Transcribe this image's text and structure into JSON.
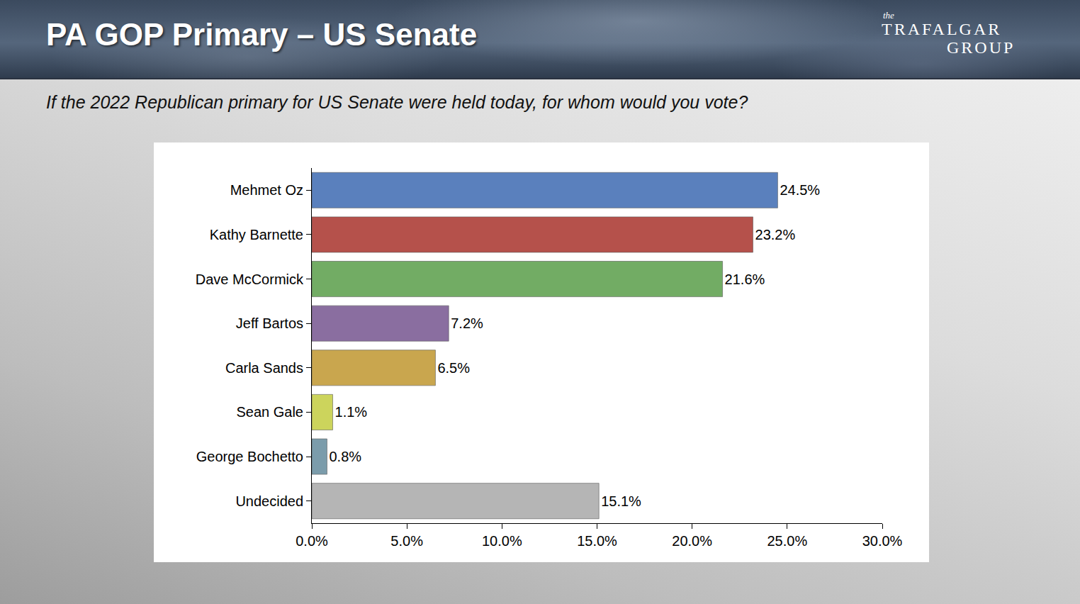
{
  "chart_data": {
    "type": "bar",
    "title": "PA GOP Primary – US Senate",
    "subtitle": "If the 2022 Republican primary for US Senate were held today, for whom would you vote?",
    "orientation": "horizontal",
    "categories": [
      "Mehmet Oz",
      "Kathy Barnette",
      "Dave McCormick",
      "Jeff Bartos",
      "Carla Sands",
      "Sean Gale",
      "George Bochetto",
      "Undecided"
    ],
    "values": [
      24.5,
      23.2,
      21.6,
      7.2,
      6.5,
      1.1,
      0.8,
      15.1
    ],
    "value_labels": [
      "24.5%",
      "23.2%",
      "21.6%",
      "7.2%",
      "6.5%",
      "1.1%",
      "0.8%",
      "15.1%"
    ],
    "colors": [
      "#5a80bd",
      "#b5514b",
      "#72ac64",
      "#8a6ea0",
      "#c9a64e",
      "#ccd45c",
      "#7b9cab",
      "#b5b5b5"
    ],
    "data_labels": true,
    "xlim": [
      0,
      30
    ],
    "xticks": [
      {
        "value": 0,
        "label": "0.0%"
      },
      {
        "value": 5,
        "label": "5.0%"
      },
      {
        "value": 10,
        "label": "10.0%"
      },
      {
        "value": 15,
        "label": "15.0%"
      },
      {
        "value": 20,
        "label": "20.0%"
      },
      {
        "value": 25,
        "label": "25.0%"
      },
      {
        "value": 30,
        "label": "30.0%"
      }
    ],
    "grid": false
  },
  "logo": {
    "small": "the",
    "line1": "TRAFALGAR",
    "line2": "GROUP"
  }
}
